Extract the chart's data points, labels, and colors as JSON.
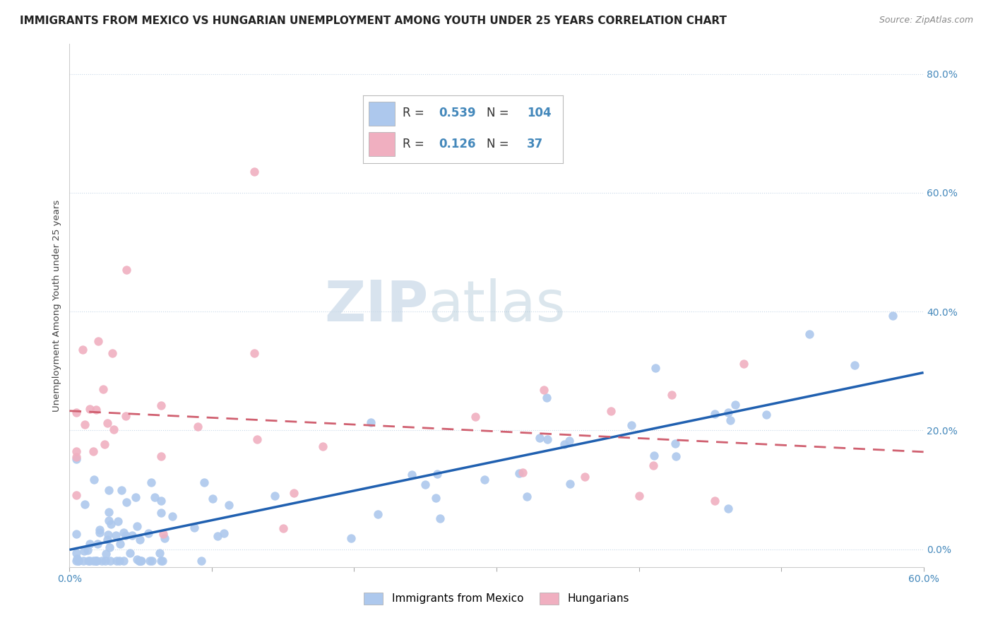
{
  "title": "IMMIGRANTS FROM MEXICO VS HUNGARIAN UNEMPLOYMENT AMONG YOUTH UNDER 25 YEARS CORRELATION CHART",
  "source": "Source: ZipAtlas.com",
  "ylabel": "Unemployment Among Youth under 25 years",
  "blue_label": "Immigrants from Mexico",
  "pink_label": "Hungarians",
  "blue_R": 0.539,
  "blue_N": 104,
  "pink_R": 0.126,
  "pink_N": 37,
  "blue_color": "#adc8ed",
  "pink_color": "#f0afc0",
  "blue_line_color": "#2060b0",
  "pink_line_color": "#d06070",
  "watermark_zip": "ZIP",
  "watermark_atlas": "atlas",
  "xlim": [
    0.0,
    0.6
  ],
  "ylim": [
    -0.03,
    0.85
  ],
  "yticks": [
    0.0,
    0.2,
    0.4,
    0.6,
    0.8
  ],
  "ytick_labels": [
    "0.0%",
    "20.0%",
    "40.0%",
    "60.0%",
    "80.0%"
  ],
  "background_color": "#ffffff",
  "grid_color": "#c8d8e8",
  "title_fontsize": 11,
  "axis_label_fontsize": 9.5,
  "tick_fontsize": 10,
  "source_fontsize": 9,
  "tick_color": "#4488bb"
}
